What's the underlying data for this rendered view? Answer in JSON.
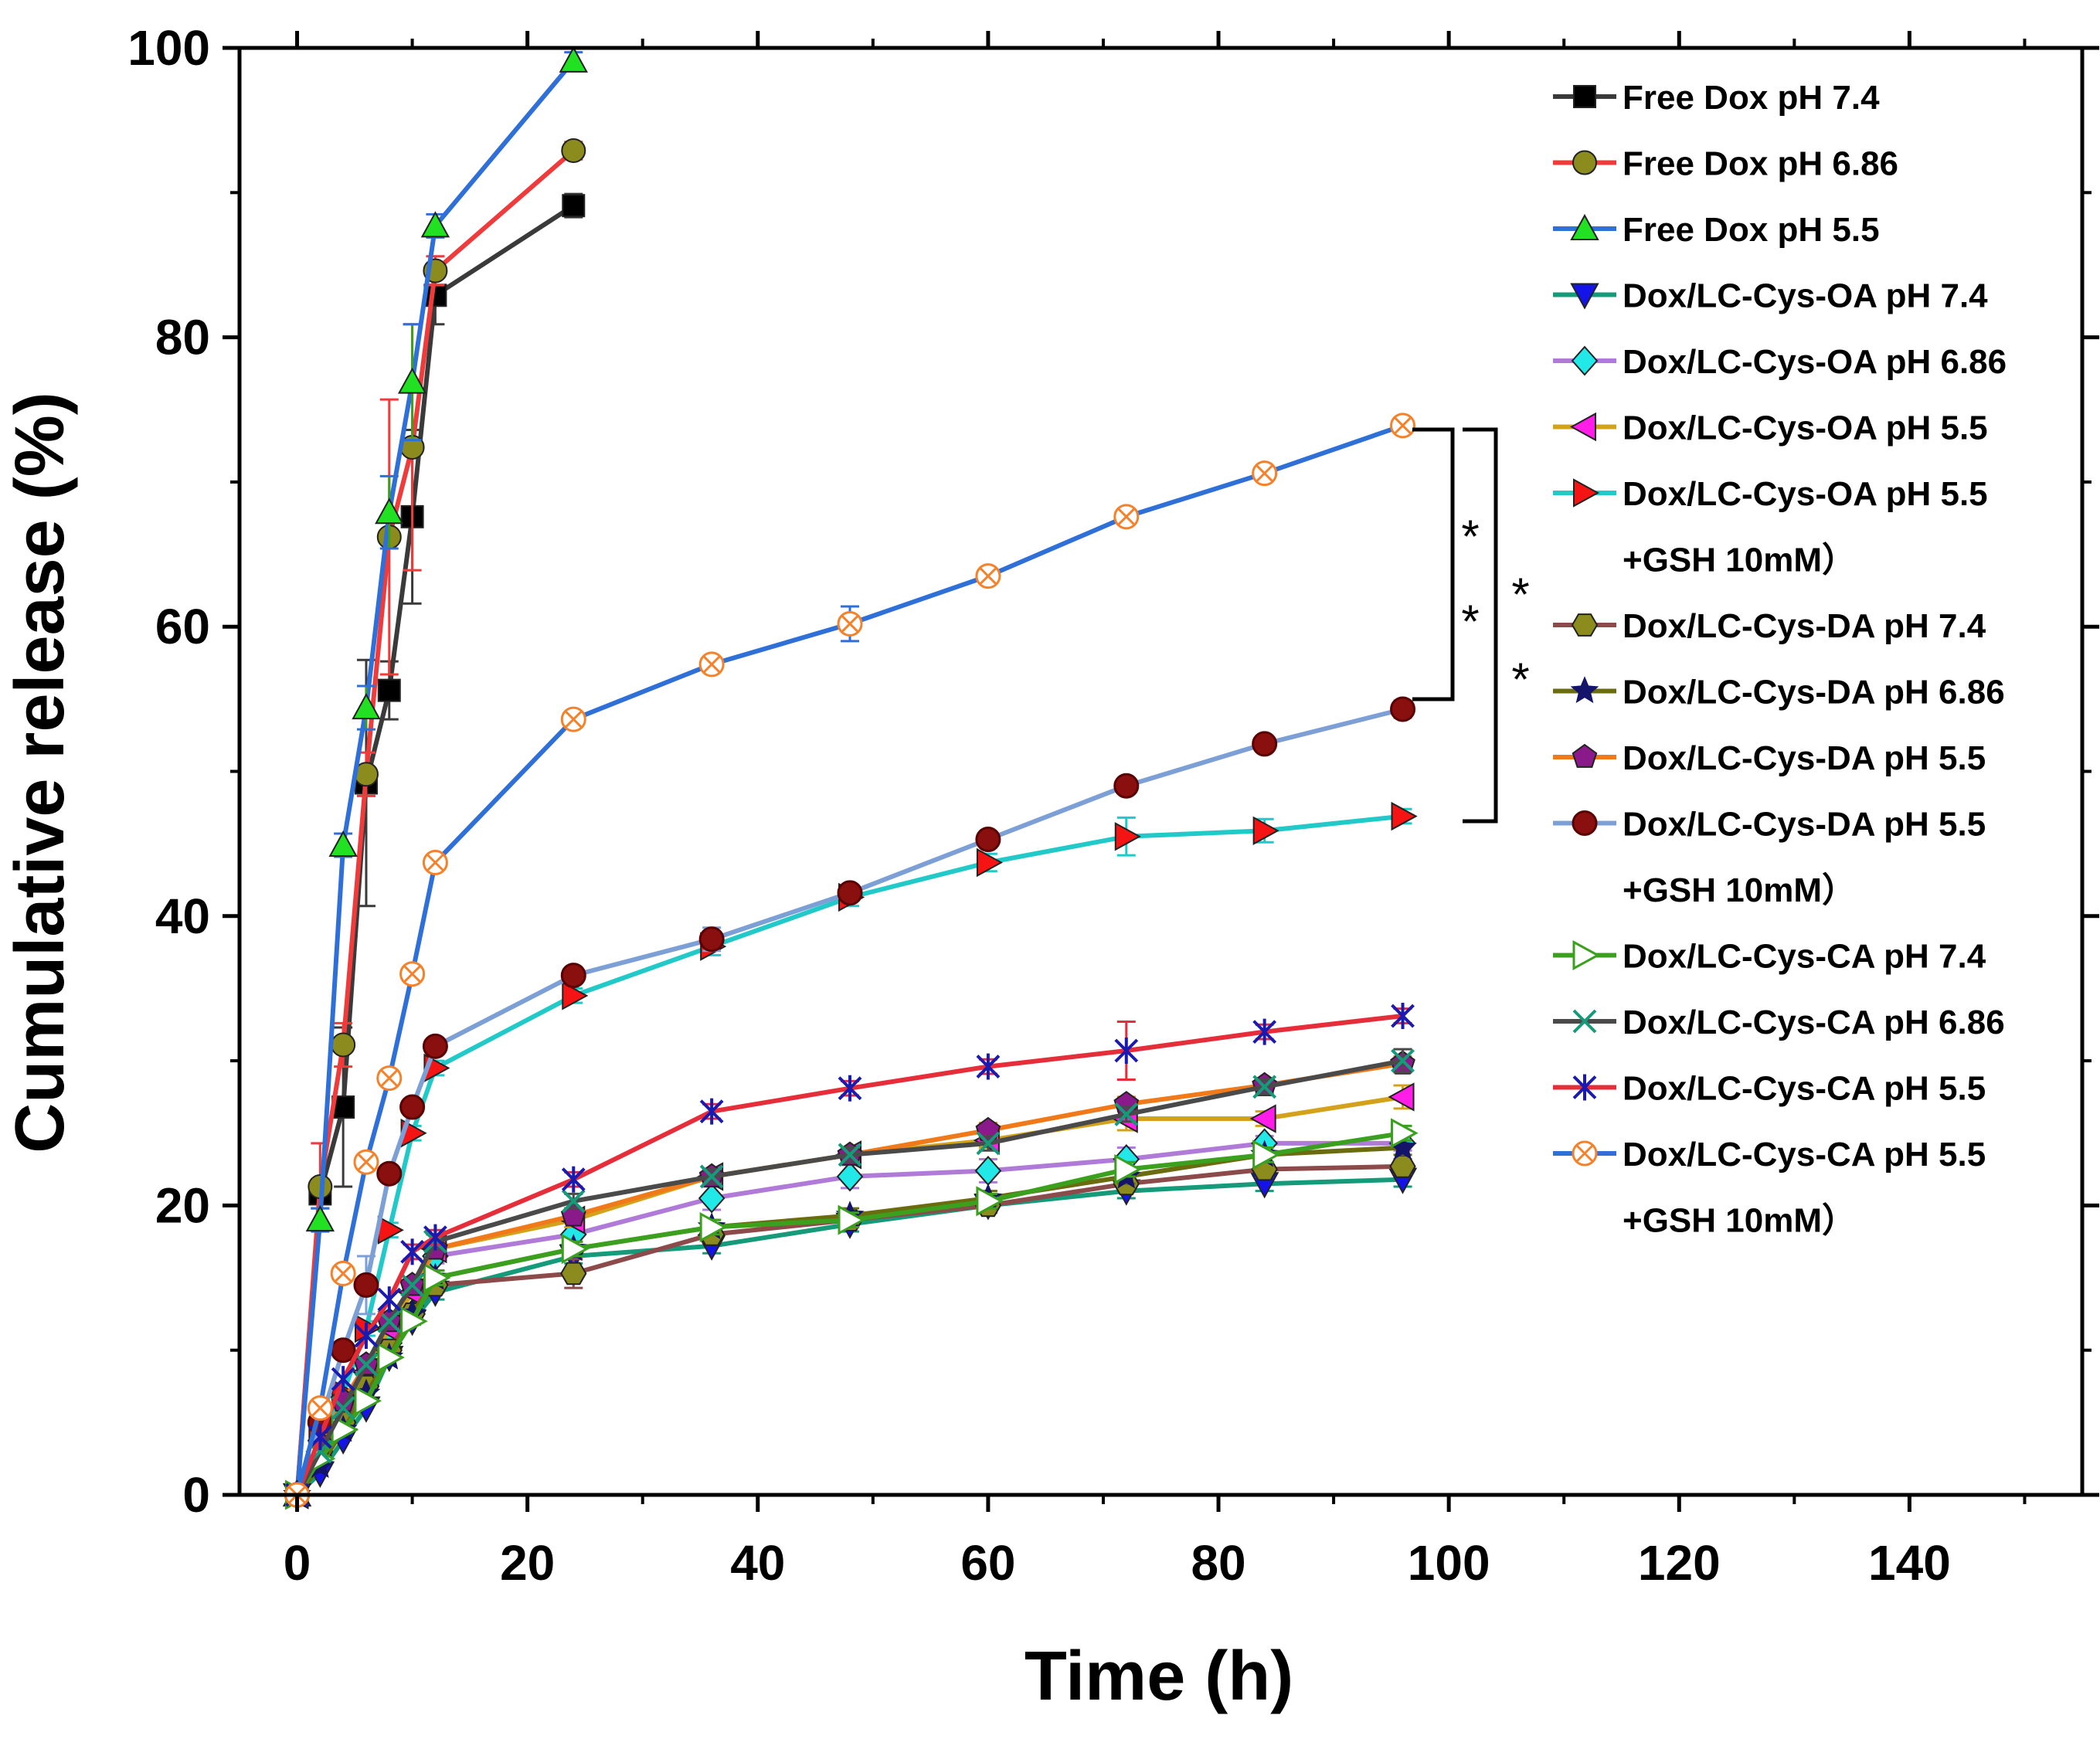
{
  "chart_data": {
    "type": "line",
    "title": "",
    "xlabel": "Time (h)",
    "ylabel": "Cumulative release (%)",
    "xlim": [
      -5,
      155
    ],
    "ylim": [
      0,
      100
    ],
    "x_ticks": [
      0,
      20,
      40,
      60,
      80,
      100,
      120,
      140
    ],
    "y_ticks": [
      0,
      20,
      40,
      60,
      80,
      100
    ],
    "legend_position": "top-right",
    "series": [
      {
        "name": "Free Dox pH 7.4",
        "color": "#3a3a3a",
        "marker": "square",
        "marker_color": "#000000",
        "x": [
          0,
          2,
          4,
          6,
          8,
          10,
          12,
          24
        ],
        "y": [
          0,
          20.8,
          26.8,
          49.2,
          55.6,
          67.6,
          82.9,
          89.1
        ],
        "err": [
          0,
          1.0,
          5.5,
          8.5,
          2.0,
          6.0,
          2.0,
          0.8
        ]
      },
      {
        "name": "Free Dox pH 6.86",
        "color": "#ef3b3b",
        "marker": "circle",
        "marker_color": "#8b8b1e",
        "x": [
          0,
          2,
          4,
          6,
          8,
          10,
          12,
          24
        ],
        "y": [
          0,
          21.3,
          31.1,
          49.8,
          66.2,
          72.4,
          84.6,
          92.9
        ],
        "err": [
          0,
          3.0,
          1.5,
          1.5,
          9.5,
          8.5,
          1.0,
          0.6
        ]
      },
      {
        "name": "Free Dox pH 5.5",
        "color": "#2f6fd8",
        "marker": "triangle-up",
        "marker_color": "#22e022",
        "x": [
          0,
          2,
          4,
          6,
          8,
          10,
          12,
          24
        ],
        "y": [
          0,
          19.0,
          44.9,
          54.4,
          67.9,
          76.9,
          87.7,
          99.1
        ],
        "err": [
          0,
          0.8,
          0.8,
          1.5,
          2.5,
          4.0,
          0.8,
          0.6
        ]
      },
      {
        "name": "Dox/LC-Cys-OA pH 7.4",
        "color": "#159a7a",
        "marker": "triangle-down",
        "marker_color": "#1414e6",
        "x": [
          0,
          2,
          4,
          6,
          8,
          10,
          12,
          24,
          36,
          48,
          60,
          72,
          84,
          96
        ],
        "y": [
          0,
          1.5,
          3.8,
          6.0,
          9.5,
          12.0,
          14.0,
          16.5,
          17.2,
          18.7,
          20.0,
          21.0,
          21.5,
          21.8
        ],
        "err": [
          0,
          0.2,
          0.3,
          0.3,
          0.3,
          0.3,
          0.5,
          0.5,
          0.5,
          0.5,
          0.5,
          0.5,
          0.5,
          0.5
        ]
      },
      {
        "name": "Dox/LC-Cys-OA pH 6.86",
        "color": "#b07ad9",
        "marker": "diamond",
        "marker_color": "#22e8e8",
        "x": [
          0,
          2,
          4,
          6,
          8,
          10,
          12,
          24,
          36,
          48,
          60,
          72,
          84,
          96
        ],
        "y": [
          0,
          2.5,
          5.0,
          7.5,
          10.5,
          12.5,
          16.5,
          18.0,
          20.5,
          22.0,
          22.4,
          23.2,
          24.3,
          24.3
        ],
        "err": [
          0,
          0.3,
          0.3,
          0.3,
          0.3,
          0.3,
          0.5,
          0.5,
          0.8,
          0.8,
          0.8,
          0.8,
          0.5,
          0.5
        ]
      },
      {
        "name": "Dox/LC-Cys-OA pH 5.5",
        "color": "#d4a21a",
        "marker": "triangle-left",
        "marker_color": "#ff1ee8",
        "x": [
          0,
          2,
          4,
          6,
          8,
          10,
          12,
          24,
          36,
          48,
          60,
          72,
          84,
          96
        ],
        "y": [
          0,
          3.0,
          5.5,
          8.5,
          11.5,
          14.0,
          17.0,
          19.0,
          22.0,
          23.5,
          24.5,
          26.0,
          26.0,
          27.5
        ],
        "err": [
          0,
          0.3,
          0.3,
          0.3,
          0.3,
          0.3,
          0.5,
          0.5,
          0.5,
          0.5,
          0.5,
          0.8,
          0.5,
          0.8
        ]
      },
      {
        "name": "Dox/LC-Cys-OA pH 5.5",
        "name2": "+GSH 10mM）",
        "color": "#22c9c9",
        "marker": "triangle-right",
        "marker_color": "#f51414",
        "x": [
          0,
          2,
          4,
          6,
          8,
          10,
          12,
          24,
          36,
          48,
          60,
          72,
          84,
          96
        ],
        "y": [
          0,
          4.0,
          7.0,
          11.5,
          18.3,
          25.0,
          29.5,
          34.5,
          37.9,
          41.3,
          43.7,
          45.5,
          45.9,
          46.9
        ],
        "err": [
          0,
          0.3,
          0.3,
          0.5,
          0.5,
          0.5,
          0.5,
          0.5,
          0.6,
          0.6,
          0.6,
          1.3,
          0.8,
          0.5
        ]
      },
      {
        "name": "Dox/LC-Cys-DA pH 7.4",
        "color": "#8c4a4a",
        "marker": "hexagon",
        "marker_color": "#8b8b1e",
        "x": [
          0,
          2,
          4,
          6,
          8,
          10,
          12,
          24,
          36,
          48,
          60,
          72,
          84,
          96
        ],
        "y": [
          0,
          3.0,
          5.0,
          7.5,
          10.0,
          12.5,
          14.5,
          15.3,
          18.0,
          19.0,
          20.0,
          21.5,
          22.5,
          22.7
        ],
        "err": [
          0,
          0.3,
          0.3,
          0.3,
          0.3,
          0.3,
          0.5,
          1.0,
          0.5,
          0.5,
          0.5,
          0.5,
          0.5,
          0.5
        ]
      },
      {
        "name": "Dox/LC-Cys-DA pH 6.86",
        "color": "#6b6b10",
        "marker": "star",
        "marker_color": "#14146b",
        "x": [
          0,
          2,
          4,
          6,
          8,
          10,
          12,
          24,
          36,
          48,
          60,
          72,
          84,
          96
        ],
        "y": [
          0,
          2.0,
          4.5,
          7.0,
          9.5,
          12.5,
          15.0,
          17.0,
          18.5,
          19.3,
          20.5,
          22.0,
          23.5,
          24.0
        ],
        "err": [
          0,
          0.3,
          0.3,
          0.3,
          0.3,
          0.3,
          0.5,
          0.5,
          0.5,
          0.5,
          0.5,
          0.5,
          0.5,
          0.5
        ]
      },
      {
        "name": "Dox/LC-Cys-DA pH 5.5",
        "color": "#f07a1a",
        "marker": "pentagon",
        "marker_color": "#8a1a8a",
        "x": [
          0,
          2,
          4,
          6,
          8,
          10,
          12,
          24,
          36,
          48,
          60,
          72,
          84,
          96
        ],
        "y": [
          0,
          3.5,
          6.5,
          9.0,
          12.0,
          14.5,
          17.0,
          19.3,
          22.0,
          23.5,
          25.2,
          27.0,
          28.3,
          29.8
        ],
        "err": [
          0,
          0.3,
          0.3,
          0.3,
          0.3,
          0.3,
          0.5,
          0.5,
          0.5,
          0.5,
          0.5,
          0.5,
          0.5,
          0.5
        ]
      },
      {
        "name": "Dox/LC-Cys-DA pH 5.5",
        "name2": "+GSH 10mM）",
        "color": "#7ca0d6",
        "marker": "sphere",
        "marker_color": "#8a1010",
        "x": [
          0,
          2,
          4,
          6,
          8,
          10,
          12,
          24,
          36,
          48,
          60,
          72,
          84,
          96
        ],
        "y": [
          0,
          5.0,
          10.0,
          14.5,
          22.2,
          26.8,
          31.0,
          35.9,
          38.4,
          41.6,
          45.3,
          49.0,
          51.9,
          54.3
        ],
        "err": [
          0,
          0.3,
          0.3,
          2.0,
          0.5,
          0.5,
          0.5,
          0.5,
          0.8,
          0.5,
          0.5,
          0.5,
          0.5,
          0.6
        ]
      },
      {
        "name": "Dox/LC-Cys-CA pH 7.4",
        "color": "#3aa01e",
        "marker": "triangle-right-open",
        "marker_color": "#3aa01e",
        "x": [
          0,
          2,
          4,
          6,
          8,
          10,
          12,
          24,
          36,
          48,
          60,
          72,
          84,
          96
        ],
        "y": [
          0,
          2.5,
          4.5,
          6.5,
          9.5,
          12.0,
          15.0,
          17.0,
          18.5,
          19.0,
          20.3,
          22.5,
          23.5,
          25.0
        ],
        "err": [
          0,
          0.3,
          0.3,
          0.3,
          0.3,
          0.3,
          0.5,
          0.5,
          0.5,
          0.5,
          0.5,
          0.5,
          0.5,
          0.5
        ]
      },
      {
        "name": "Dox/LC-Cys-CA pH 6.86",
        "color": "#4a4a4a",
        "marker": "x",
        "marker_color": "#159a7a",
        "x": [
          0,
          2,
          4,
          6,
          8,
          10,
          12,
          24,
          36,
          48,
          60,
          72,
          84,
          96
        ],
        "y": [
          0,
          3.0,
          6.0,
          9.0,
          12.0,
          14.5,
          17.5,
          20.3,
          22.0,
          23.5,
          24.3,
          26.3,
          28.2,
          30.0
        ],
        "err": [
          0,
          0.3,
          0.3,
          0.3,
          0.3,
          0.3,
          0.5,
          0.5,
          0.5,
          0.5,
          0.5,
          0.5,
          0.5,
          0.8
        ]
      },
      {
        "name": "Dox/LC-Cys-CA pH 5.5",
        "color": "#e62e3a",
        "marker": "asterisk",
        "marker_color": "#1a1ab0",
        "x": [
          0,
          2,
          4,
          6,
          8,
          10,
          12,
          24,
          36,
          48,
          60,
          72,
          84,
          96
        ],
        "y": [
          0,
          4.0,
          8.0,
          11.0,
          13.5,
          16.8,
          17.8,
          21.8,
          26.5,
          28.1,
          29.6,
          30.7,
          32.0,
          33.1
        ],
        "err": [
          0,
          0.3,
          0.3,
          0.3,
          0.3,
          0.5,
          0.5,
          0.5,
          0.5,
          0.5,
          0.5,
          2.0,
          0.5,
          0.5
        ]
      },
      {
        "name": "Dox/LC-Cys-CA pH 5.5",
        "name2": "+GSH 10mM）",
        "color": "#2f6fd8",
        "marker": "circle-x",
        "marker_color": "#f5822a",
        "x": [
          0,
          2,
          4,
          6,
          8,
          10,
          12,
          24,
          36,
          48,
          60,
          72,
          84,
          96
        ],
        "y": [
          0,
          6.0,
          15.3,
          23.0,
          28.8,
          36.0,
          43.7,
          53.6,
          57.4,
          60.2,
          63.5,
          67.6,
          70.6,
          73.9
        ],
        "err": [
          0,
          0.5,
          0.5,
          0.5,
          0.5,
          0.5,
          0.5,
          0.5,
          0.5,
          1.2,
          0.5,
          0.5,
          0.5,
          0.5
        ]
      }
    ],
    "annotations": [
      {
        "text": "*",
        "role": "significance-inner-top"
      },
      {
        "text": "*",
        "role": "significance-inner-bottom"
      },
      {
        "text": "*",
        "role": "significance-outer-top"
      },
      {
        "text": "*",
        "role": "significance-outer-bottom"
      }
    ]
  }
}
